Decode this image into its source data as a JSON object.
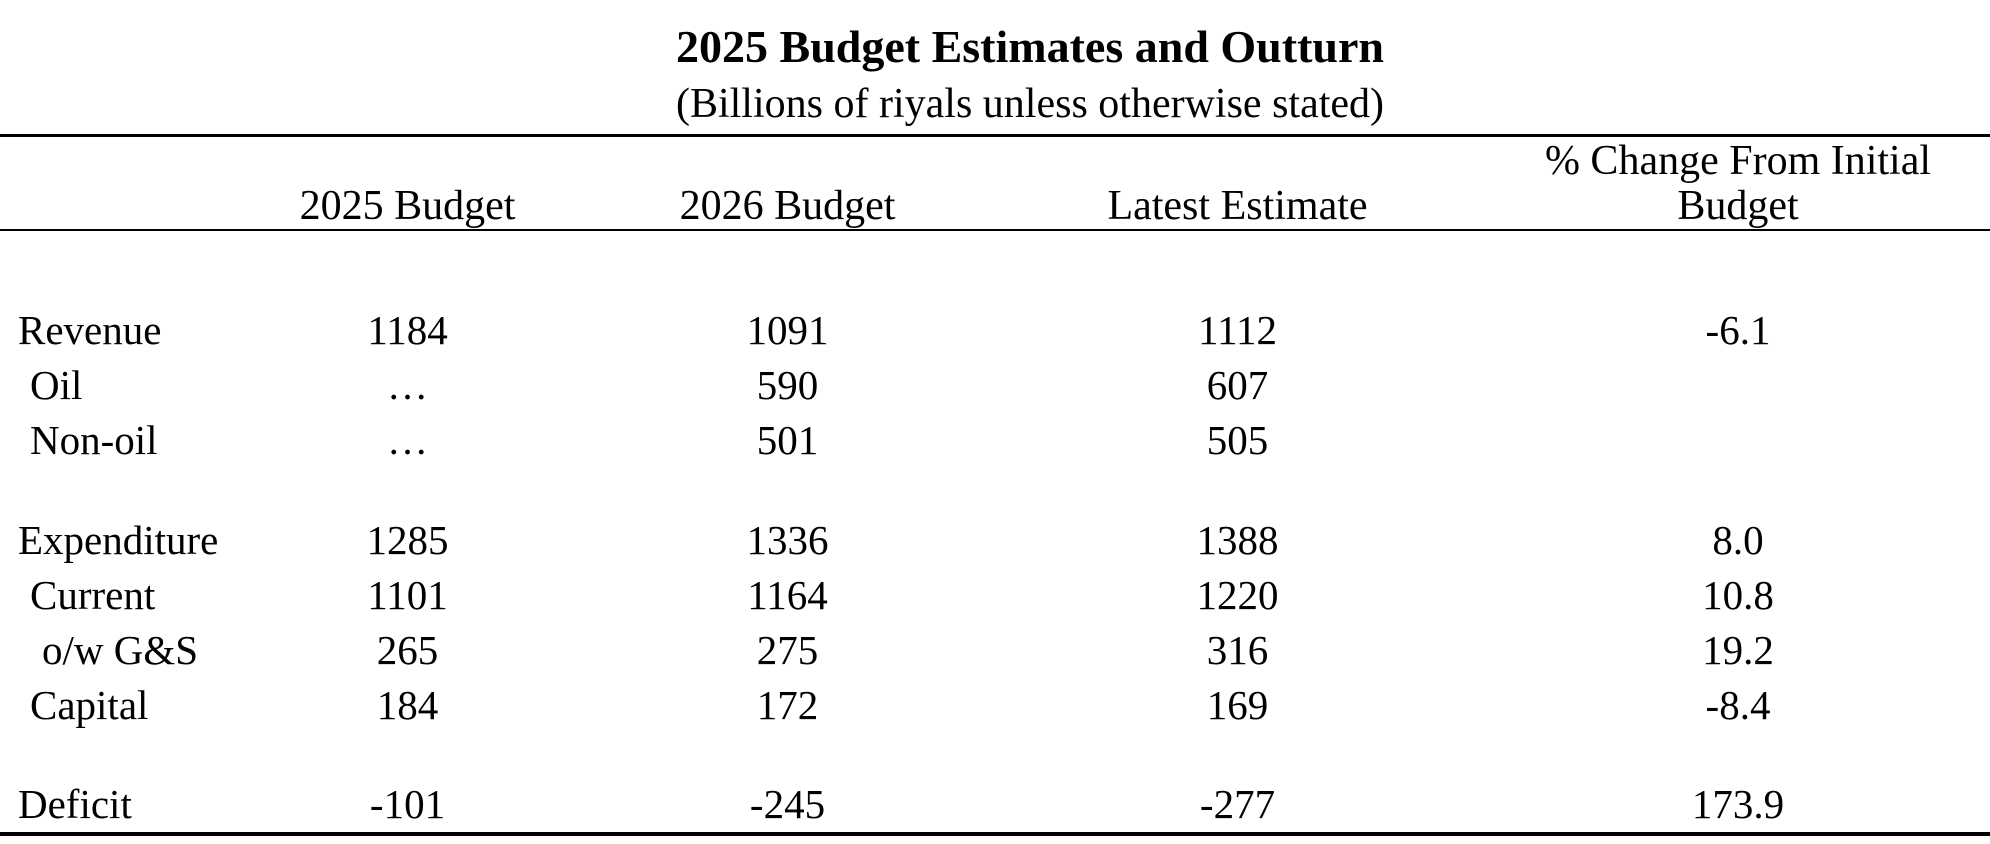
{
  "title": "2025 Budget Estimates and Outturn",
  "subtitle": "(Billions of riyals unless otherwise stated)",
  "headers": {
    "col1": "2025 Budget",
    "col2": "2026 Budget",
    "col3": "Latest Estimate",
    "col4_line1": "% Change From Initial",
    "col4_line2": "Budget"
  },
  "rows": [
    {
      "label": "Revenue",
      "values": [
        "1184",
        "1091",
        "1112",
        "-6.1"
      ]
    },
    {
      "label": "Oil",
      "values": [
        "…",
        "590",
        "607",
        ""
      ]
    },
    {
      "label": "Non-oil",
      "values": [
        "…",
        "501",
        "505",
        ""
      ]
    },
    {
      "label": "Expenditure",
      "values": [
        "1285",
        "1336",
        "1388",
        "8.0"
      ]
    },
    {
      "label": "Current",
      "values": [
        "1101",
        "1164",
        "1220",
        "10.8"
      ]
    },
    {
      "label": "o/w G&S",
      "values": [
        "265",
        "275",
        "316",
        "19.2"
      ]
    },
    {
      "label": "Capital",
      "values": [
        "184",
        "172",
        "169",
        "-8.4"
      ]
    },
    {
      "label": "Deficit",
      "values": [
        "-101",
        "-245",
        "-277",
        "173.9"
      ]
    }
  ],
  "chart_data": {
    "type": "table",
    "title": "2025 Budget Estimates and Outturn",
    "subtitle": "(Billions of riyals unless otherwise stated)",
    "columns": [
      "2025 Budget",
      "2026 Budget",
      "Latest Estimate",
      "% Change From Initial Budget"
    ],
    "rows": [
      {
        "label": "Revenue",
        "indent": 0,
        "values": [
          1184,
          1091,
          1112,
          -6.1
        ]
      },
      {
        "label": "Oil",
        "indent": 1,
        "values": [
          null,
          590,
          607,
          null
        ]
      },
      {
        "label": "Non-oil",
        "indent": 1,
        "values": [
          null,
          501,
          505,
          null
        ]
      },
      {
        "label": "Expenditure",
        "indent": 0,
        "values": [
          1285,
          1336,
          1388,
          8.0
        ]
      },
      {
        "label": "Current",
        "indent": 1,
        "values": [
          1101,
          1164,
          1220,
          10.8
        ]
      },
      {
        "label": "o/w G&S",
        "indent": 2,
        "values": [
          265,
          275,
          316,
          19.2
        ]
      },
      {
        "label": "Capital",
        "indent": 1,
        "values": [
          184,
          172,
          169,
          -8.4
        ]
      },
      {
        "label": "Deficit",
        "indent": 0,
        "values": [
          -101,
          -245,
          -277,
          173.9
        ]
      }
    ]
  }
}
